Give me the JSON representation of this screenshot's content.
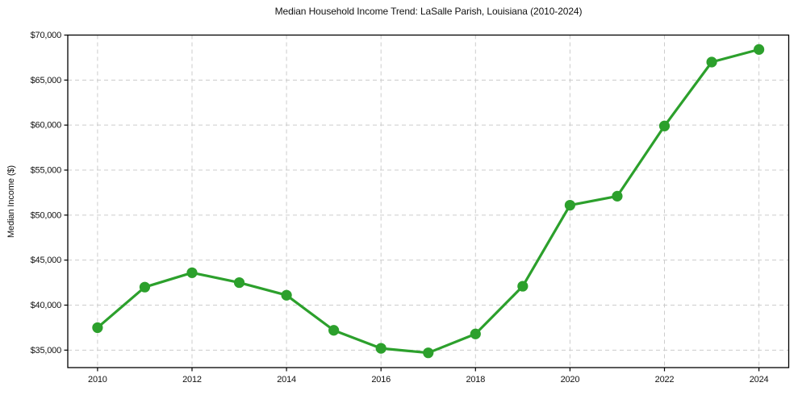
{
  "chart_data": {
    "type": "line",
    "title": "Median Household Income Trend: LaSalle Parish, Louisiana (2010-2024)",
    "xlabel": "",
    "ylabel": "Median Income ($)",
    "series_name": "median-household-income",
    "x": [
      2010,
      2011,
      2012,
      2013,
      2014,
      2015,
      2016,
      2017,
      2018,
      2019,
      2020,
      2021,
      2022,
      2023,
      2024
    ],
    "values": [
      37500,
      42000,
      43600,
      42500,
      41100,
      37200,
      35200,
      34700,
      36800,
      42100,
      51100,
      52100,
      59900,
      67000,
      68400
    ],
    "xticks": [
      2010,
      2012,
      2014,
      2016,
      2018,
      2020,
      2022,
      2024
    ],
    "xtick_labels": [
      "2010",
      "2012",
      "2014",
      "2016",
      "2018",
      "2020",
      "2022",
      "2024"
    ],
    "yticks": [
      35000,
      40000,
      45000,
      50000,
      55000,
      60000,
      65000,
      70000
    ],
    "ytick_labels": [
      "$35,000",
      "$40,000",
      "$45,000",
      "$50,000",
      "$55,000",
      "$60,000",
      "$65,000",
      "$70,000"
    ],
    "xlim": [
      2009.37,
      2024.63
    ],
    "ylim": [
      33060,
      70000
    ],
    "grid": true,
    "grid_style": "dashed",
    "legend": "none",
    "marker": "circle",
    "line_color": "#2ca02c",
    "marker_color": "#2ca02c",
    "grid_color": "#cccccc",
    "axis_color": "#000000",
    "background_color": "#ffffff"
  }
}
